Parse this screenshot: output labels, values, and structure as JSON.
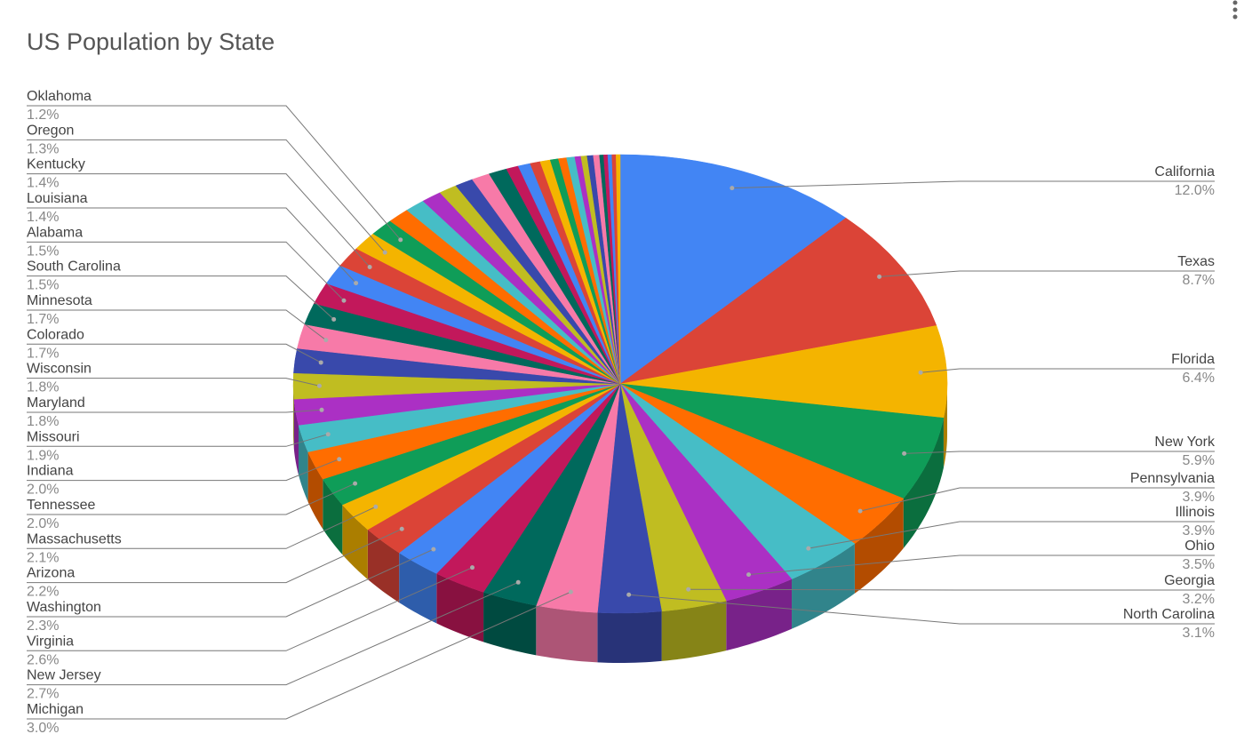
{
  "chart_data": {
    "type": "pie3d",
    "title": "US Population by State",
    "categories": [
      "California",
      "Texas",
      "Florida",
      "New York",
      "Pennsylvania",
      "Illinois",
      "Ohio",
      "Georgia",
      "North Carolina",
      "Michigan",
      "New Jersey",
      "Virginia",
      "Washington",
      "Arizona",
      "Massachusetts",
      "Tennessee",
      "Indiana",
      "Missouri",
      "Maryland",
      "Wisconsin",
      "Colorado",
      "Minnesota",
      "South Carolina",
      "Alabama",
      "Louisiana",
      "Kentucky",
      "Oregon",
      "Oklahoma",
      null,
      null,
      null,
      null,
      null,
      null,
      null,
      null,
      null,
      null,
      null,
      null,
      null,
      null,
      null,
      null,
      null,
      null,
      null,
      null,
      null,
      null,
      null
    ],
    "values": [
      12.0,
      8.7,
      6.4,
      5.9,
      3.9,
      3.9,
      3.5,
      3.2,
      3.1,
      3.0,
      2.7,
      2.6,
      2.3,
      2.2,
      2.1,
      2.0,
      2.0,
      1.9,
      1.8,
      1.8,
      1.7,
      1.7,
      1.5,
      1.5,
      1.4,
      1.4,
      1.3,
      1.2,
      1.1,
      1.0,
      1.0,
      0.9,
      0.9,
      0.9,
      0.9,
      0.6,
      0.6,
      0.5,
      0.5,
      0.4,
      0.4,
      0.4,
      0.3,
      0.3,
      0.3,
      0.3,
      0.2,
      0.2,
      0.2,
      0.2,
      0.2
    ],
    "value_labels": [
      "12.0%",
      "8.7%",
      "6.4%",
      "5.9%",
      "3.9%",
      "3.9%",
      "3.5%",
      "3.2%",
      "3.1%",
      "3.0%",
      "2.7%",
      "2.6%",
      "2.3%",
      "2.2%",
      "2.1%",
      "2.0%",
      "2.0%",
      "1.9%",
      "1.8%",
      "1.8%",
      "1.7%",
      "1.7%",
      "1.5%",
      "1.5%",
      "1.4%",
      "1.4%",
      "1.3%",
      "1.2%",
      null,
      null,
      null,
      null,
      null,
      null,
      null,
      null,
      null,
      null,
      null,
      null,
      null,
      null,
      null,
      null,
      null,
      null,
      null,
      null,
      null,
      null,
      null
    ],
    "colors": [
      "#4285f4",
      "#db4437",
      "#f4b400",
      "#0f9d58",
      "#ff6d00",
      "#46bdc6",
      "#ab30c4",
      "#c0bd21",
      "#3949ab",
      "#f77aa8",
      "#00695c",
      "#c2185b"
    ]
  }
}
